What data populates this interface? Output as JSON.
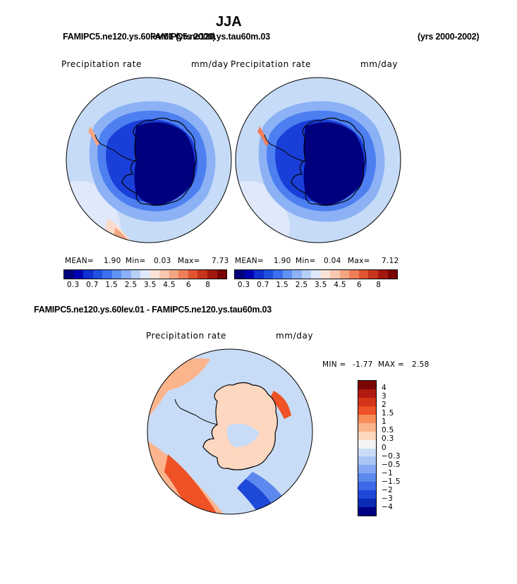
{
  "title": "JJA",
  "top_left_header": "FAMIPC5.ne120.ys.60lev.01 (yrs 2000)",
  "top_left_header_overlap": "FAMIPC5.ne120.ys.tau60m.03",
  "top_right_header": "(yrs 2000-2002)",
  "panel_left": {
    "variable": "Precipitation rate",
    "units": "mm/day",
    "mean_label": "MEAN=",
    "mean_value": "1.90",
    "min_label": "Min=",
    "min_value": "0.03",
    "max_label": "Max=",
    "max_value": "7.73"
  },
  "panel_right": {
    "variable": "Precipitation rate",
    "units": "mm/day",
    "mean_label": "MEAN=",
    "mean_value": "1.90",
    "min_label": "Min=",
    "min_value": "0.04",
    "max_label": "Max=",
    "max_value": "7.12"
  },
  "seq_colorbar": {
    "colors": [
      "#00007f",
      "#0000b3",
      "#1030d0",
      "#2050e0",
      "#3e6ff0",
      "#6092f2",
      "#8cb2f5",
      "#b7d0f8",
      "#dfe9fb",
      "#fbe4d6",
      "#f9c8b0",
      "#f4a582",
      "#ef7e5b",
      "#e0552f",
      "#c8341c",
      "#a3180e",
      "#7a0403"
    ],
    "tick_labels": [
      "0.3",
      "0.7",
      "1.5",
      "2.5",
      "3.5",
      "4.5",
      "6",
      "8"
    ]
  },
  "diff_title": "FAMIPC5.ne120.ys.60lev.01 - FAMIPC5.ne120.ys.tau60m.03",
  "panel_diff": {
    "variable": "Precipitation rate",
    "units": "mm/day",
    "min_label": "MIN =",
    "min_value": "-1.77",
    "max_label": "MAX =",
    "max_value": "2.58"
  },
  "diff_colorbar": {
    "colors": [
      "#7a0403",
      "#b01a10",
      "#d43418",
      "#ee5226",
      "#f78d59",
      "#fbb48c",
      "#fdd7bf",
      "#f4f4f4",
      "#c8dcf7",
      "#a9c6f6",
      "#84a9f3",
      "#5d88ee",
      "#3c69e8",
      "#1e48d8",
      "#0c2bb5",
      "#000085"
    ],
    "labels": [
      "4",
      "3",
      "2",
      "1.5",
      "1",
      "0.5",
      "0.3",
      "0",
      "-0.3",
      "-0.5",
      "-1",
      "-1.5",
      "-2",
      "-3",
      "-4"
    ]
  }
}
